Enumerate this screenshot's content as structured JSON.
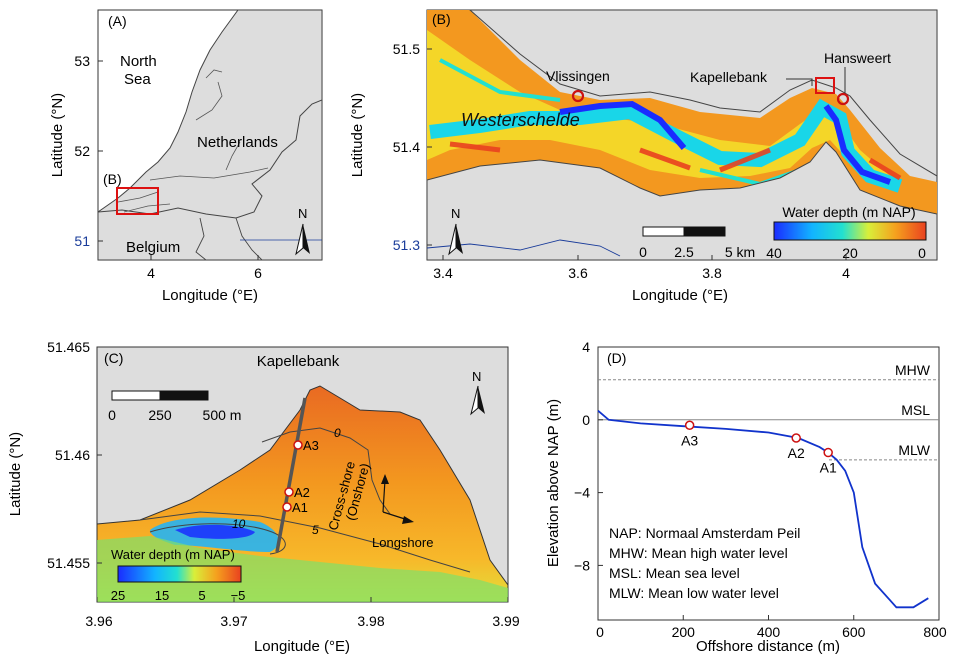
{
  "colors": {
    "land": "#dddddd",
    "border": "#555555",
    "water_deep": "#1a2cff",
    "water_mid": "#19d6e8",
    "water_shallow": "#f3e12a",
    "water_orange": "#f5a11e",
    "water_red": "#e9411f",
    "marker": "#cc1111",
    "profile_line": "#1133cc",
    "box": "#dd1111"
  },
  "panel_a": {
    "label": "(A)",
    "xlabel": "Longitude (°E)",
    "ylabel": "Latitude (°N)",
    "x_ticks": [
      "4",
      "6"
    ],
    "y_ticks": [
      "53",
      "52",
      "51"
    ],
    "north_sea": [
      "North",
      "Sea"
    ],
    "netherlands": "Netherlands",
    "belgium": "Belgium",
    "inset_label": "(B)",
    "north_arrow": "N"
  },
  "panel_b": {
    "label": "(B)",
    "xlabel": "Longitude (°E)",
    "ylabel": "Latitude (°N)",
    "x_ticks": [
      "3.4",
      "3.6",
      "3.8",
      "4"
    ],
    "y_ticks": [
      "51.5",
      "51.4",
      "51.3"
    ],
    "vlissingen": "Vlissingen",
    "westerschelde": "Westerschelde",
    "hansweert": "Hansweert",
    "kapellebank": "Kapellebank",
    "north_arrow": "N",
    "scalebar_labels": [
      "0",
      "2.5",
      "5 km"
    ],
    "colorbar_title": "Water depth (m NAP)",
    "colorbar_ticks": [
      "40",
      "20",
      "0"
    ]
  },
  "panel_c": {
    "label": "(C)",
    "title": "Kapellebank",
    "xlabel": "Longitude (°E)",
    "ylabel": "Latitude (°N)",
    "x_ticks": [
      "3.96",
      "3.97",
      "3.98",
      "3.99"
    ],
    "y_ticks": [
      "51.465",
      "51.46",
      "51.455"
    ],
    "scalebar_labels": [
      "0",
      "250",
      "500 m"
    ],
    "north_arrow": "N",
    "points": [
      "A3",
      "A2",
      "A1"
    ],
    "contours": [
      "0",
      "5",
      "10"
    ],
    "cross_shore": [
      "Cross-shore",
      "(Onshore)"
    ],
    "longshore": "Longshore",
    "colorbar_title": "Water depth (m NAP)",
    "colorbar_ticks": [
      "25",
      "15",
      "5",
      "−5"
    ]
  },
  "panel_d": {
    "label": "(D)",
    "xlabel": "Offshore distance (m)",
    "ylabel": "Elevation above NAP (m)",
    "x_ticks": [
      "0",
      "200",
      "400",
      "600",
      "800"
    ],
    "y_ticks": [
      "4",
      "0",
      "−4",
      "−8"
    ],
    "levels": {
      "mhw": "MHW",
      "msl": "MSL",
      "mlw": "MLW"
    },
    "legend": [
      "NAP: Normaal Amsterdam Peil",
      "MHW: Mean high water level",
      "MSL: Mean sea level",
      "MLW: Mean low water level"
    ],
    "points": [
      "A3",
      "A2",
      "A1"
    ]
  },
  "chart_data": {
    "type": "line",
    "xlim": [
      0,
      800
    ],
    "ylim": [
      -11,
      4
    ],
    "x": [
      0,
      25,
      100,
      200,
      300,
      400,
      470,
      520,
      540,
      560,
      580,
      600,
      620,
      650,
      700,
      740,
      775
    ],
    "y": [
      0.5,
      0.0,
      -0.2,
      -0.35,
      -0.5,
      -0.7,
      -1.0,
      -1.5,
      -1.8,
      -2.2,
      -2.8,
      -4.0,
      -7.0,
      -9.0,
      -10.3,
      -10.3,
      -9.8
    ],
    "reference_levels": {
      "MHW": 2.2,
      "MSL": 0.0,
      "MLW": -2.2
    },
    "markers": [
      {
        "label": "A3",
        "x": 215,
        "y": -0.3
      },
      {
        "label": "A2",
        "x": 465,
        "y": -1.0
      },
      {
        "label": "A1",
        "x": 540,
        "y": -1.8
      }
    ]
  }
}
